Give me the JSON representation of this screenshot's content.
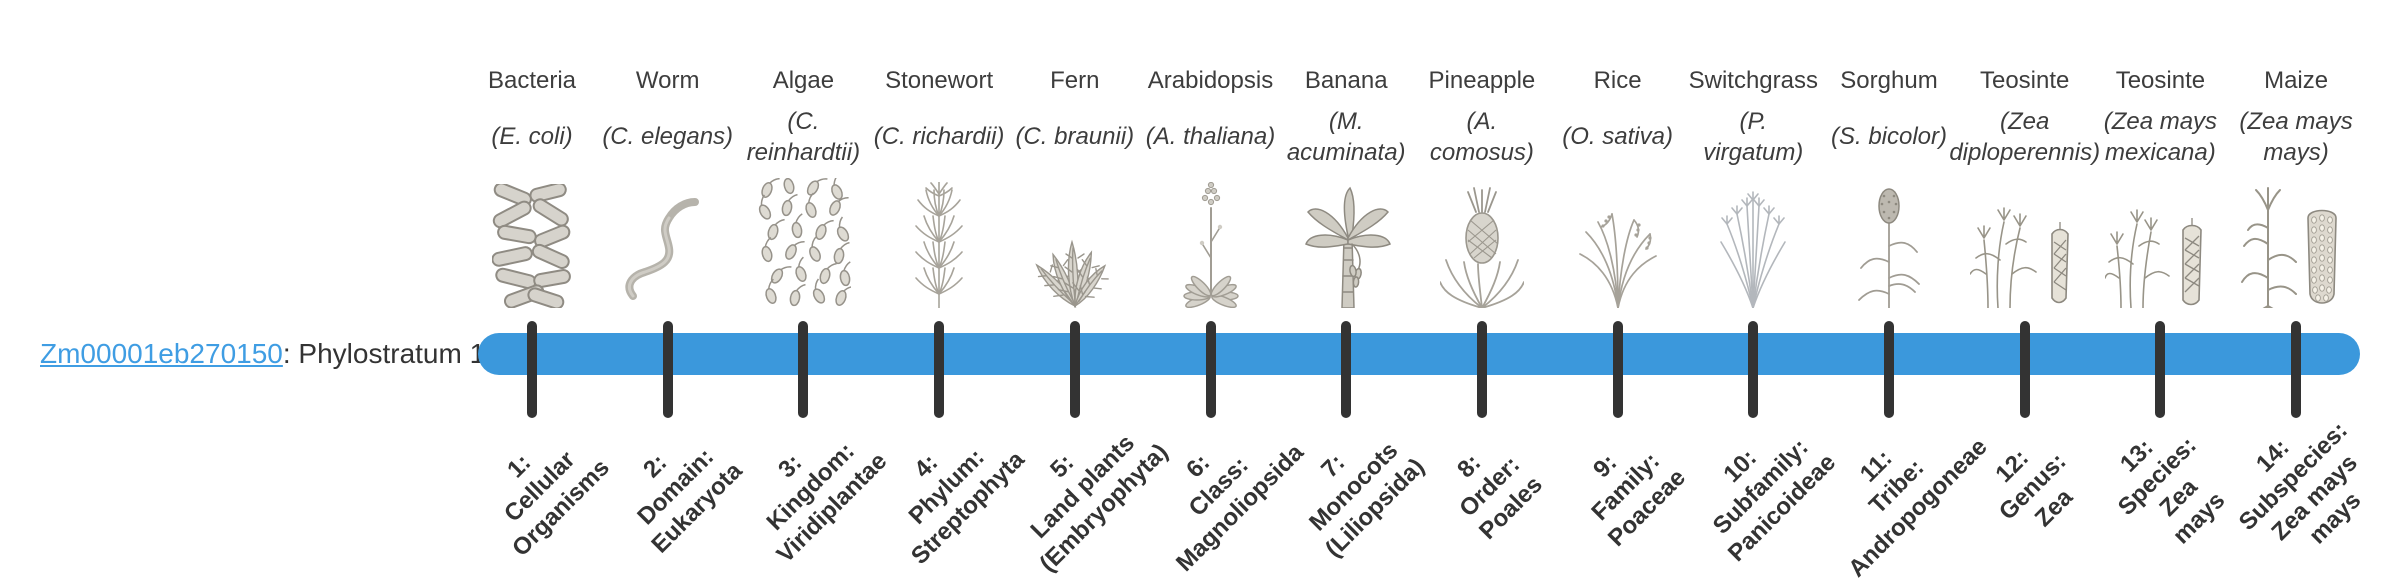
{
  "gene": {
    "id": "Zm00001eb270150",
    "suffix": ": Phylostratum 1",
    "link_color": "#3f9de3",
    "text_color": "#333333"
  },
  "timeline": {
    "bar_color": "#3b98dc",
    "tick_color": "#333333",
    "tick_count": 14
  },
  "strata": [
    {
      "index": 1,
      "name": "Bacteria",
      "sci": "(E. coli)",
      "icon": "bacteria-icon",
      "stage_label": "1:\nCellular\nOrganisms"
    },
    {
      "index": 2,
      "name": "Worm",
      "sci": "(C. elegans)",
      "icon": "worm-icon",
      "stage_label": "2:\nDomain:\nEukaryota"
    },
    {
      "index": 3,
      "name": "Algae",
      "sci": "(C.\nreinhardtii)",
      "icon": "algae-icon",
      "stage_label": "3:\nKingdom:\nViridiplantae"
    },
    {
      "index": 4,
      "name": "Stonewort",
      "sci": "(C. richardii)",
      "icon": "stonewort-icon",
      "stage_label": "4:\nPhylum:\nStreptophyta"
    },
    {
      "index": 5,
      "name": "Fern",
      "sci": "(C. braunii)",
      "icon": "fern-icon",
      "stage_label": "5:\nLand plants\n(Embryophyta)"
    },
    {
      "index": 6,
      "name": "Arabidopsis",
      "sci": "(A. thaliana)",
      "icon": "arabidopsis-icon",
      "stage_label": "6:\nClass:\nMagnoliopsida"
    },
    {
      "index": 7,
      "name": "Banana",
      "sci": "(M.\nacuminata)",
      "icon": "banana-icon",
      "stage_label": "7:\nMonocots\n(Liliopsida)"
    },
    {
      "index": 8,
      "name": "Pineapple",
      "sci": "(A.\ncomosus)",
      "icon": "pineapple-icon",
      "stage_label": "8:\nOrder:\nPoales"
    },
    {
      "index": 9,
      "name": "Rice",
      "sci": "(O. sativa)",
      "icon": "rice-icon",
      "stage_label": "9:\nFamily:\nPoaceae"
    },
    {
      "index": 10,
      "name": "Switchgrass",
      "sci": "(P.\nvirgatum)",
      "icon": "switchgrass-icon",
      "stage_label": "10:\nSubfamily:\nPanicoideae"
    },
    {
      "index": 11,
      "name": "Sorghum",
      "sci": "(S. bicolor)",
      "icon": "sorghum-icon",
      "stage_label": "11:\nTribe:\nAndropogoneae"
    },
    {
      "index": 12,
      "name": "Teosinte",
      "sci": "(Zea\ndiploperennis)",
      "icon": "teosinte-diploperennis-icon",
      "stage_label": "12:\nGenus:\nZea"
    },
    {
      "index": 13,
      "name": "Teosinte",
      "sci": "(Zea mays\nmexicana)",
      "icon": "teosinte-mexicana-icon",
      "stage_label": "13:\nSpecies:\nZea\nmays"
    },
    {
      "index": 14,
      "name": "Maize",
      "sci": "(Zea mays\nmays)",
      "icon": "maize-icon",
      "stage_label": "14:\nSubspecies:\nZea mays\nmays"
    }
  ]
}
